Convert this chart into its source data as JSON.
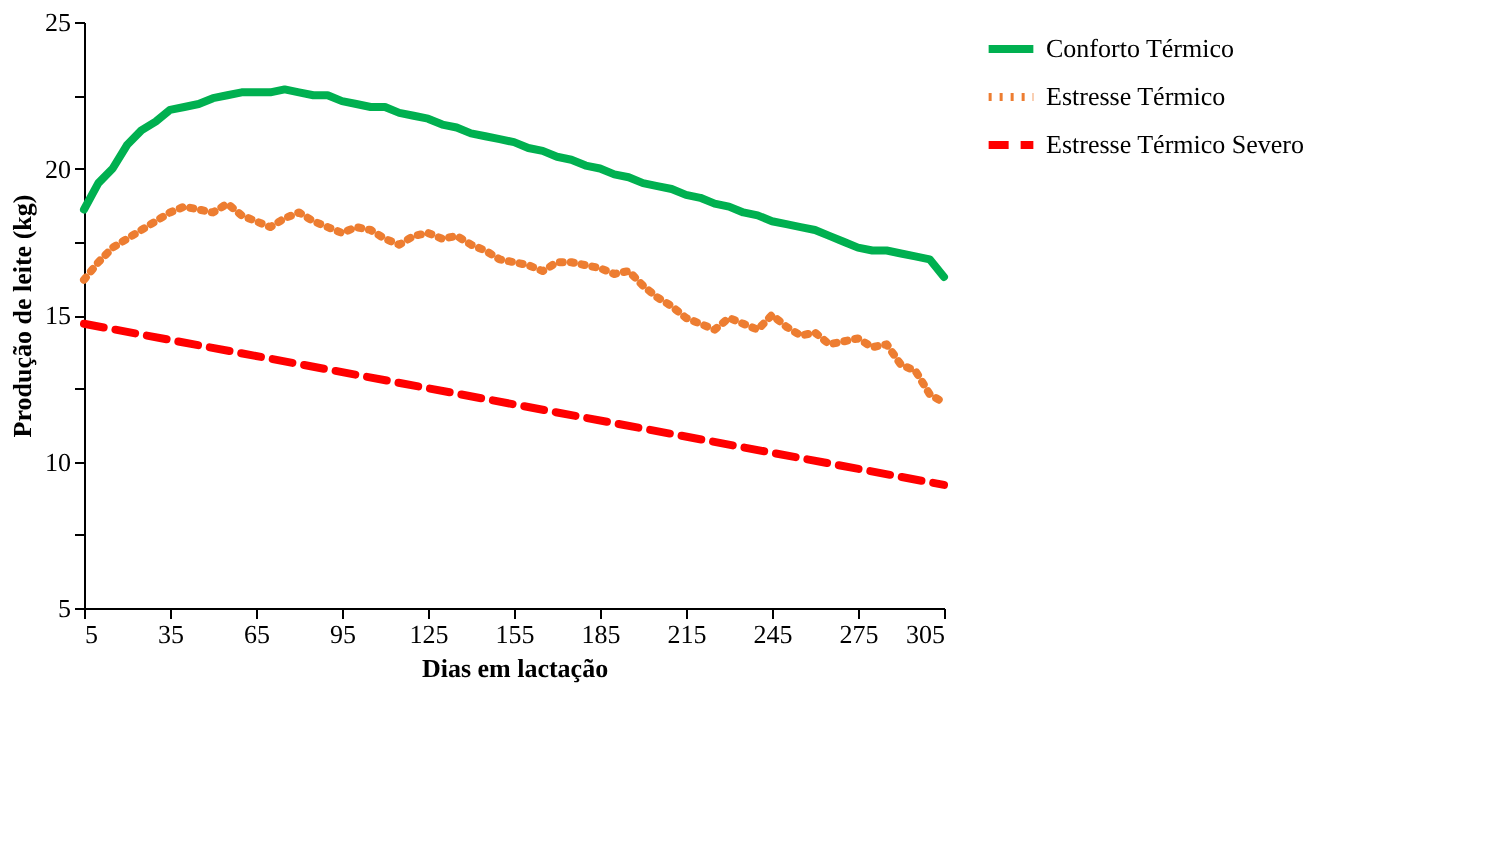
{
  "chart_data": {
    "type": "line",
    "xlabel": "Dias em lactação",
    "ylabel": "Produção de leite (kg)",
    "x": [
      5,
      10,
      15,
      20,
      25,
      30,
      35,
      40,
      45,
      50,
      55,
      60,
      65,
      70,
      75,
      80,
      85,
      90,
      95,
      100,
      105,
      110,
      115,
      120,
      125,
      130,
      135,
      140,
      145,
      150,
      155,
      160,
      165,
      170,
      175,
      180,
      185,
      190,
      195,
      200,
      205,
      210,
      215,
      220,
      225,
      230,
      235,
      240,
      245,
      250,
      255,
      260,
      265,
      270,
      275,
      280,
      285,
      290,
      295,
      300,
      305
    ],
    "series": [
      {
        "name": "Conforto Térmico",
        "color": "#00b050",
        "line_style": "solid",
        "values": [
          18.6,
          19.5,
          20.0,
          20.8,
          21.3,
          21.6,
          22.0,
          22.1,
          22.2,
          22.4,
          22.5,
          22.6,
          22.6,
          22.6,
          22.7,
          22.6,
          22.5,
          22.5,
          22.3,
          22.2,
          22.1,
          22.1,
          21.9,
          21.8,
          21.7,
          21.5,
          21.4,
          21.2,
          21.1,
          21.0,
          20.9,
          20.7,
          20.6,
          20.4,
          20.3,
          20.1,
          20.0,
          19.8,
          19.7,
          19.5,
          19.4,
          19.3,
          19.1,
          19.0,
          18.8,
          18.7,
          18.5,
          18.4,
          18.2,
          18.1,
          18.0,
          17.9,
          17.7,
          17.5,
          17.3,
          17.2,
          17.2,
          17.1,
          17.0,
          16.9,
          16.3
        ]
      },
      {
        "name": "Estresse Térmico",
        "color": "#ed7d31",
        "line_style": "dotted",
        "values": [
          16.2,
          16.8,
          17.3,
          17.6,
          17.9,
          18.2,
          18.5,
          18.7,
          18.6,
          18.5,
          18.8,
          18.4,
          18.2,
          18.0,
          18.3,
          18.5,
          18.2,
          18.0,
          17.8,
          18.0,
          17.9,
          17.6,
          17.4,
          17.7,
          17.8,
          17.6,
          17.7,
          17.4,
          17.2,
          16.9,
          16.8,
          16.7,
          16.5,
          16.8,
          16.8,
          16.7,
          16.6,
          16.4,
          16.5,
          16.0,
          15.6,
          15.3,
          14.9,
          14.7,
          14.5,
          14.9,
          14.7,
          14.5,
          15.0,
          14.6,
          14.3,
          14.4,
          14.0,
          14.1,
          14.2,
          13.9,
          14.0,
          13.3,
          13.1,
          12.3,
          12.0
        ]
      },
      {
        "name": "Estresse Térmico Severo",
        "color": "#ff0000",
        "line_style": "dashed",
        "x": [
          5,
          305
        ],
        "values": [
          14.7,
          9.2
        ]
      }
    ],
    "xlim": [
      5,
      305
    ],
    "xticks": [
      5,
      35,
      65,
      95,
      125,
      155,
      185,
      215,
      245,
      275,
      305
    ],
    "ylim": [
      5,
      25
    ],
    "yticks": [
      5,
      {
        "value": 7.5,
        "label": null
      },
      10,
      {
        "value": 12.5,
        "label": null
      },
      15,
      {
        "value": 17.5,
        "label": null
      },
      20,
      {
        "value": 22.5,
        "label": null
      },
      25
    ],
    "grid": false,
    "legend": "right",
    "marker": "none"
  }
}
